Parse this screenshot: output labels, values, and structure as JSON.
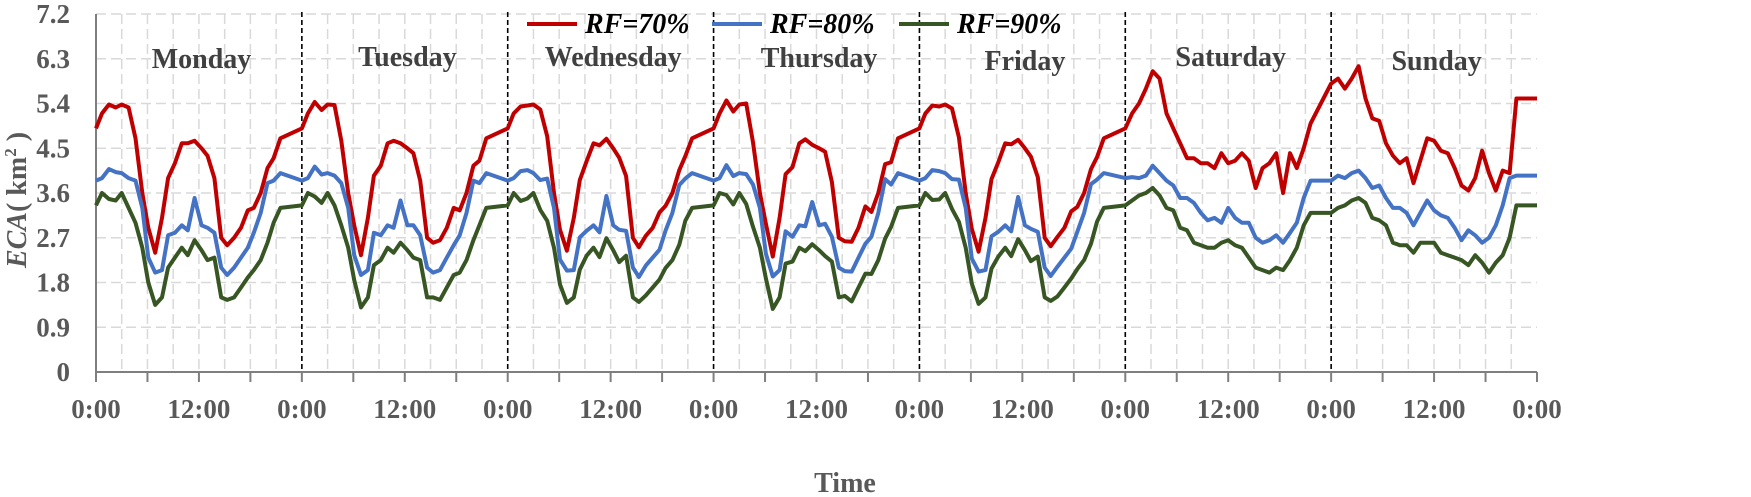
{
  "chart_data": {
    "type": "line",
    "xlabel": "Time",
    "ylabel_main": "ECA",
    "ylabel_unit_prefix": "( km",
    "ylabel_unit_sup": "2",
    "ylabel_unit_suffix": " )",
    "ylim": [
      0,
      7.2
    ],
    "yticks": [
      "0",
      "0.9",
      "1.8",
      "2.7",
      "3.6",
      "4.5",
      "5.4",
      "6.3",
      "7.2"
    ],
    "xticks": [
      "0:00",
      "12:00",
      "0:00",
      "12:00",
      "0:00",
      "12:00",
      "0:00",
      "12:00",
      "0:00",
      "12:00",
      "0:00",
      "12:00",
      "0:00",
      "12:00",
      "0:00"
    ],
    "x_range_hours": [
      0,
      168
    ],
    "grid": true,
    "legend_position": "top-center",
    "days": [
      "Monday",
      "Tuesday",
      "Wednesday",
      "Thursday",
      "Friday",
      "Saturday",
      "Sunday"
    ],
    "series_shape": {
      "RF=70%": {
        "weekday": [
          [
            0,
            4.9
          ],
          [
            0.7,
            5.2
          ],
          [
            1.5,
            5.38
          ],
          [
            2.3,
            5.32
          ],
          [
            3,
            5.38
          ],
          [
            3.8,
            5.32
          ],
          [
            4.6,
            4.7
          ],
          [
            5.4,
            3.6
          ],
          [
            6.1,
            2.9
          ],
          [
            6.9,
            2.4
          ],
          [
            7.7,
            3.1
          ],
          [
            8.4,
            3.9
          ],
          [
            9.2,
            4.2
          ],
          [
            10,
            4.6
          ],
          [
            10.7,
            4.6
          ],
          [
            11.5,
            4.65
          ],
          [
            12.3,
            4.5
          ],
          [
            13,
            4.35
          ],
          [
            13.8,
            3.9
          ],
          [
            14.6,
            2.7
          ],
          [
            15.3,
            2.55
          ],
          [
            16.1,
            2.7
          ],
          [
            16.9,
            2.9
          ],
          [
            17.7,
            3.25
          ],
          [
            18.4,
            3.3
          ],
          [
            19.2,
            3.6
          ],
          [
            20,
            4.1
          ],
          [
            20.7,
            4.3
          ],
          [
            21.5,
            4.7
          ],
          [
            24,
            4.9
          ]
        ],
        "saturday": [
          [
            0,
            4.9
          ],
          [
            0.8,
            5.2
          ],
          [
            1.6,
            5.4
          ],
          [
            2.4,
            5.7
          ],
          [
            3.2,
            6.05
          ],
          [
            4,
            5.9
          ],
          [
            4.8,
            5.2
          ],
          [
            5.6,
            4.9
          ],
          [
            6.4,
            4.6
          ],
          [
            7.2,
            4.3
          ],
          [
            8,
            4.3
          ],
          [
            8.8,
            4.2
          ],
          [
            9.6,
            4.2
          ],
          [
            10.4,
            4.1
          ],
          [
            11.2,
            4.4
          ],
          [
            12,
            4.2
          ],
          [
            12.8,
            4.25
          ],
          [
            13.6,
            4.4
          ],
          [
            14.4,
            4.25
          ],
          [
            15.2,
            3.7
          ],
          [
            16,
            4.1
          ],
          [
            16.8,
            4.2
          ],
          [
            17.6,
            4.4
          ],
          [
            18.4,
            3.6
          ],
          [
            19.2,
            4.4
          ],
          [
            20,
            4.1
          ],
          [
            20.8,
            4.5
          ],
          [
            21.6,
            5.0
          ],
          [
            24,
            5.8
          ]
        ],
        "sunday": [
          [
            0,
            5.8
          ],
          [
            0.8,
            5.9
          ],
          [
            1.6,
            5.7
          ],
          [
            2.4,
            5.9
          ],
          [
            3.2,
            6.15
          ],
          [
            4,
            5.5
          ],
          [
            4.8,
            5.1
          ],
          [
            5.6,
            5.05
          ],
          [
            6.4,
            4.6
          ],
          [
            7.2,
            4.35
          ],
          [
            8,
            4.2
          ],
          [
            8.8,
            4.3
          ],
          [
            9.6,
            3.8
          ],
          [
            10.4,
            4.25
          ],
          [
            11.2,
            4.7
          ],
          [
            12,
            4.65
          ],
          [
            12.8,
            4.45
          ],
          [
            13.6,
            4.4
          ],
          [
            14.4,
            4.1
          ],
          [
            15.2,
            3.75
          ],
          [
            16,
            3.65
          ],
          [
            16.8,
            3.9
          ],
          [
            17.6,
            4.45
          ],
          [
            18.4,
            4.0
          ],
          [
            19.2,
            3.65
          ],
          [
            20,
            4.05
          ],
          [
            20.8,
            4.0
          ],
          [
            21.6,
            5.5
          ]
        ]
      },
      "RF=80%": {
        "weekday": [
          [
            0,
            3.85
          ],
          [
            0.7,
            3.9
          ],
          [
            1.5,
            4.08
          ],
          [
            2.3,
            4.02
          ],
          [
            3,
            4.0
          ],
          [
            3.8,
            3.9
          ],
          [
            4.6,
            3.85
          ],
          [
            5.4,
            3.3
          ],
          [
            6.1,
            2.3
          ],
          [
            6.9,
            2.0
          ],
          [
            7.7,
            2.05
          ],
          [
            8.4,
            2.75
          ],
          [
            9.2,
            2.8
          ],
          [
            10,
            2.95
          ],
          [
            10.7,
            2.85
          ],
          [
            11.5,
            3.5
          ],
          [
            12.3,
            2.95
          ],
          [
            13,
            2.9
          ],
          [
            13.8,
            2.8
          ],
          [
            14.6,
            2.1
          ],
          [
            15.3,
            1.95
          ],
          [
            16.1,
            2.1
          ],
          [
            16.9,
            2.3
          ],
          [
            17.7,
            2.5
          ],
          [
            18.4,
            2.8
          ],
          [
            19.2,
            3.2
          ],
          [
            20,
            3.8
          ],
          [
            20.7,
            3.85
          ],
          [
            21.5,
            4.0
          ],
          [
            24,
            3.9
          ]
        ],
        "saturday": [
          [
            0,
            3.9
          ],
          [
            0.8,
            3.92
          ],
          [
            1.6,
            3.9
          ],
          [
            2.4,
            3.95
          ],
          [
            3.2,
            4.15
          ],
          [
            4,
            4.0
          ],
          [
            4.8,
            3.85
          ],
          [
            5.6,
            3.75
          ],
          [
            6.4,
            3.5
          ],
          [
            7.2,
            3.5
          ],
          [
            8,
            3.4
          ],
          [
            8.8,
            3.2
          ],
          [
            9.6,
            3.05
          ],
          [
            10.4,
            3.1
          ],
          [
            11.2,
            3.0
          ],
          [
            12,
            3.3
          ],
          [
            12.8,
            3.1
          ],
          [
            13.6,
            3.0
          ],
          [
            14.4,
            3.0
          ],
          [
            15.2,
            2.7
          ],
          [
            16,
            2.6
          ],
          [
            16.8,
            2.65
          ],
          [
            17.6,
            2.75
          ],
          [
            18.4,
            2.6
          ],
          [
            19.2,
            2.8
          ],
          [
            20,
            3.0
          ],
          [
            20.8,
            3.5
          ],
          [
            21.6,
            3.85
          ],
          [
            24,
            3.85
          ]
        ],
        "sunday": [
          [
            0,
            3.85
          ],
          [
            0.8,
            3.95
          ],
          [
            1.6,
            3.9
          ],
          [
            2.4,
            4.0
          ],
          [
            3.2,
            4.05
          ],
          [
            4,
            3.9
          ],
          [
            4.8,
            3.7
          ],
          [
            5.6,
            3.75
          ],
          [
            6.4,
            3.5
          ],
          [
            7.2,
            3.3
          ],
          [
            8,
            3.3
          ],
          [
            8.8,
            3.2
          ],
          [
            9.6,
            2.95
          ],
          [
            10.4,
            3.2
          ],
          [
            11.2,
            3.45
          ],
          [
            12,
            3.25
          ],
          [
            12.8,
            3.15
          ],
          [
            13.6,
            3.1
          ],
          [
            14.4,
            2.9
          ],
          [
            15.2,
            2.65
          ],
          [
            16,
            2.85
          ],
          [
            16.8,
            2.75
          ],
          [
            17.6,
            2.6
          ],
          [
            18.4,
            2.7
          ],
          [
            19.2,
            2.95
          ],
          [
            20,
            3.35
          ],
          [
            20.8,
            3.9
          ],
          [
            21.6,
            3.95
          ]
        ]
      },
      "RF=90%": {
        "weekday": [
          [
            0,
            3.35
          ],
          [
            0.7,
            3.6
          ],
          [
            1.5,
            3.48
          ],
          [
            2.3,
            3.45
          ],
          [
            3,
            3.6
          ],
          [
            3.8,
            3.3
          ],
          [
            4.6,
            3.0
          ],
          [
            5.4,
            2.5
          ],
          [
            6.1,
            1.8
          ],
          [
            6.9,
            1.35
          ],
          [
            7.7,
            1.5
          ],
          [
            8.4,
            2.1
          ],
          [
            9.2,
            2.3
          ],
          [
            10,
            2.5
          ],
          [
            10.7,
            2.35
          ],
          [
            11.5,
            2.65
          ],
          [
            12.3,
            2.45
          ],
          [
            13,
            2.25
          ],
          [
            13.8,
            2.3
          ],
          [
            14.6,
            1.5
          ],
          [
            15.3,
            1.45
          ],
          [
            16.1,
            1.5
          ],
          [
            16.9,
            1.7
          ],
          [
            17.7,
            1.9
          ],
          [
            18.4,
            2.05
          ],
          [
            19.2,
            2.25
          ],
          [
            20,
            2.6
          ],
          [
            20.7,
            3.0
          ],
          [
            21.5,
            3.3
          ],
          [
            24,
            3.35
          ]
        ],
        "saturday": [
          [
            0,
            3.35
          ],
          [
            0.8,
            3.45
          ],
          [
            1.6,
            3.55
          ],
          [
            2.4,
            3.6
          ],
          [
            3.2,
            3.7
          ],
          [
            4,
            3.55
          ],
          [
            4.8,
            3.3
          ],
          [
            5.6,
            3.25
          ],
          [
            6.4,
            2.9
          ],
          [
            7.2,
            2.85
          ],
          [
            8,
            2.6
          ],
          [
            8.8,
            2.55
          ],
          [
            9.6,
            2.5
          ],
          [
            10.4,
            2.5
          ],
          [
            11.2,
            2.6
          ],
          [
            12,
            2.65
          ],
          [
            12.8,
            2.55
          ],
          [
            13.6,
            2.5
          ],
          [
            14.4,
            2.3
          ],
          [
            15.2,
            2.1
          ],
          [
            16,
            2.05
          ],
          [
            16.8,
            2.0
          ],
          [
            17.6,
            2.1
          ],
          [
            18.4,
            2.05
          ],
          [
            19.2,
            2.25
          ],
          [
            20,
            2.5
          ],
          [
            20.8,
            2.95
          ],
          [
            21.6,
            3.2
          ],
          [
            24,
            3.2
          ]
        ],
        "sunday": [
          [
            0,
            3.2
          ],
          [
            0.8,
            3.3
          ],
          [
            1.6,
            3.35
          ],
          [
            2.4,
            3.45
          ],
          [
            3.2,
            3.5
          ],
          [
            4,
            3.4
          ],
          [
            4.8,
            3.1
          ],
          [
            5.6,
            3.05
          ],
          [
            6.4,
            2.95
          ],
          [
            7.2,
            2.6
          ],
          [
            8,
            2.55
          ],
          [
            8.8,
            2.55
          ],
          [
            9.6,
            2.4
          ],
          [
            10.4,
            2.6
          ],
          [
            11.2,
            2.6
          ],
          [
            12,
            2.6
          ],
          [
            12.8,
            2.4
          ],
          [
            13.6,
            2.35
          ],
          [
            14.4,
            2.3
          ],
          [
            15.2,
            2.25
          ],
          [
            16,
            2.15
          ],
          [
            16.8,
            2.35
          ],
          [
            17.6,
            2.2
          ],
          [
            18.4,
            2.0
          ],
          [
            19.2,
            2.2
          ],
          [
            20,
            2.35
          ],
          [
            20.8,
            2.7
          ],
          [
            21.6,
            3.35
          ]
        ]
      }
    },
    "series": [
      {
        "name": "RF=70%",
        "color": "#C00000"
      },
      {
        "name": "RF=80%",
        "color": "#4472C4"
      },
      {
        "name": "RF=90%",
        "color": "#375623"
      }
    ]
  }
}
